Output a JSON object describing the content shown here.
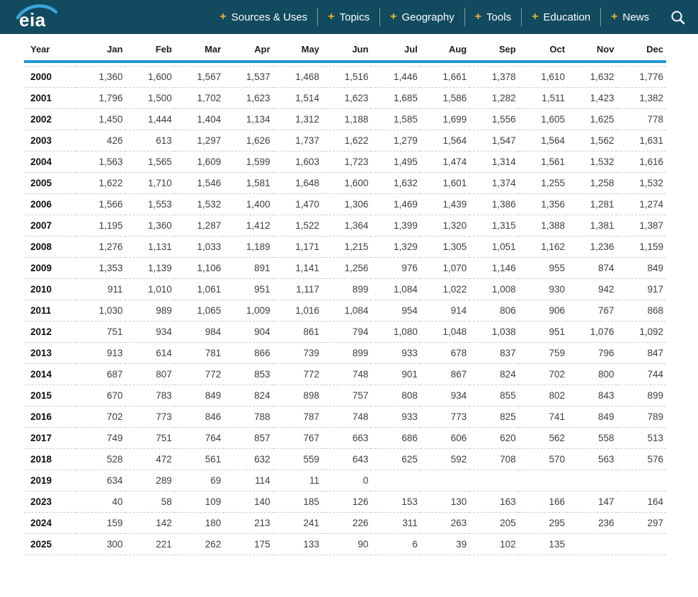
{
  "theme": {
    "nav_bg": "#124a5f",
    "accent_blue": "#2196d3",
    "plus_yellow": "#f2b32c",
    "row_divider": "#cccccc",
    "header_text": "#1c1c1c",
    "cell_text": "#3d3d3d",
    "logo_swoosh": "#3aa6db"
  },
  "nav": {
    "logo_text": "eia",
    "plus_glyph": "+",
    "items": [
      {
        "label": "Sources & Uses"
      },
      {
        "label": "Topics"
      },
      {
        "label": "Geography"
      },
      {
        "label": "Tools"
      },
      {
        "label": "Education"
      },
      {
        "label": "News"
      }
    ],
    "search_icon": "magnifying-glass"
  },
  "table": {
    "columns": [
      "Year",
      "Jan",
      "Feb",
      "Mar",
      "Apr",
      "May",
      "Jun",
      "Jul",
      "Aug",
      "Sep",
      "Oct",
      "Nov",
      "Dec"
    ],
    "rows": [
      {
        "year": "2000",
        "values": [
          "1,360",
          "1,600",
          "1,567",
          "1,537",
          "1,468",
          "1,516",
          "1,446",
          "1,661",
          "1,378",
          "1,610",
          "1,632",
          "1,776"
        ]
      },
      {
        "year": "2001",
        "values": [
          "1,796",
          "1,500",
          "1,702",
          "1,623",
          "1,514",
          "1,623",
          "1,685",
          "1,586",
          "1,282",
          "1,511",
          "1,423",
          "1,382"
        ]
      },
      {
        "year": "2002",
        "values": [
          "1,450",
          "1,444",
          "1,404",
          "1,134",
          "1,312",
          "1,188",
          "1,585",
          "1,699",
          "1,556",
          "1,605",
          "1,625",
          "778"
        ]
      },
      {
        "year": "2003",
        "values": [
          "426",
          "613",
          "1,297",
          "1,626",
          "1,737",
          "1,622",
          "1,279",
          "1,564",
          "1,547",
          "1,564",
          "1,562",
          "1,631"
        ]
      },
      {
        "year": "2004",
        "values": [
          "1,563",
          "1,565",
          "1,609",
          "1,599",
          "1,603",
          "1,723",
          "1,495",
          "1,474",
          "1,314",
          "1,561",
          "1,532",
          "1,616"
        ]
      },
      {
        "year": "2005",
        "values": [
          "1,622",
          "1,710",
          "1,546",
          "1,581",
          "1,648",
          "1,600",
          "1,632",
          "1,601",
          "1,374",
          "1,255",
          "1,258",
          "1,532"
        ]
      },
      {
        "year": "2006",
        "values": [
          "1,566",
          "1,553",
          "1,532",
          "1,400",
          "1,470",
          "1,306",
          "1,469",
          "1,439",
          "1,386",
          "1,356",
          "1,281",
          "1,274"
        ]
      },
      {
        "year": "2007",
        "values": [
          "1,195",
          "1,360",
          "1,287",
          "1,412",
          "1,522",
          "1,364",
          "1,399",
          "1,320",
          "1,315",
          "1,388",
          "1,381",
          "1,387"
        ]
      },
      {
        "year": "2008",
        "values": [
          "1,276",
          "1,131",
          "1,033",
          "1,189",
          "1,171",
          "1,215",
          "1,329",
          "1,305",
          "1,051",
          "1,162",
          "1,236",
          "1,159"
        ]
      },
      {
        "year": "2009",
        "values": [
          "1,353",
          "1,139",
          "1,106",
          "891",
          "1,141",
          "1,256",
          "976",
          "1,070",
          "1,146",
          "955",
          "874",
          "849"
        ]
      },
      {
        "year": "2010",
        "values": [
          "911",
          "1,010",
          "1,061",
          "951",
          "1,117",
          "899",
          "1,084",
          "1,022",
          "1,008",
          "930",
          "942",
          "917"
        ]
      },
      {
        "year": "2011",
        "values": [
          "1,030",
          "989",
          "1,065",
          "1,009",
          "1,016",
          "1,084",
          "954",
          "914",
          "806",
          "906",
          "767",
          "868"
        ]
      },
      {
        "year": "2012",
        "values": [
          "751",
          "934",
          "984",
          "904",
          "861",
          "794",
          "1,080",
          "1,048",
          "1,038",
          "951",
          "1,076",
          "1,092"
        ]
      },
      {
        "year": "2013",
        "values": [
          "913",
          "614",
          "781",
          "866",
          "739",
          "899",
          "933",
          "678",
          "837",
          "759",
          "796",
          "847"
        ]
      },
      {
        "year": "2014",
        "values": [
          "687",
          "807",
          "772",
          "853",
          "772",
          "748",
          "901",
          "867",
          "824",
          "702",
          "800",
          "744"
        ]
      },
      {
        "year": "2015",
        "values": [
          "670",
          "783",
          "849",
          "824",
          "898",
          "757",
          "808",
          "934",
          "855",
          "802",
          "843",
          "899"
        ]
      },
      {
        "year": "2016",
        "values": [
          "702",
          "773",
          "846",
          "788",
          "787",
          "748",
          "933",
          "773",
          "825",
          "741",
          "849",
          "789"
        ]
      },
      {
        "year": "2017",
        "values": [
          "749",
          "751",
          "764",
          "857",
          "767",
          "663",
          "686",
          "606",
          "620",
          "562",
          "558",
          "513"
        ]
      },
      {
        "year": "2018",
        "values": [
          "528",
          "472",
          "561",
          "632",
          "559",
          "643",
          "625",
          "592",
          "708",
          "570",
          "563",
          "576"
        ]
      },
      {
        "year": "2019",
        "values": [
          "634",
          "289",
          "69",
          "114",
          "11",
          "0",
          "",
          "",
          "",
          "",
          "",
          ""
        ]
      },
      {
        "year": "2023",
        "values": [
          "40",
          "58",
          "109",
          "140",
          "185",
          "126",
          "153",
          "130",
          "163",
          "166",
          "147",
          "164"
        ]
      },
      {
        "year": "2024",
        "values": [
          "159",
          "142",
          "180",
          "213",
          "241",
          "226",
          "311",
          "263",
          "205",
          "295",
          "236",
          "297"
        ]
      },
      {
        "year": "2025",
        "values": [
          "300",
          "221",
          "262",
          "175",
          "133",
          "90",
          "6",
          "39",
          "102",
          "135",
          "",
          ""
        ]
      }
    ]
  }
}
